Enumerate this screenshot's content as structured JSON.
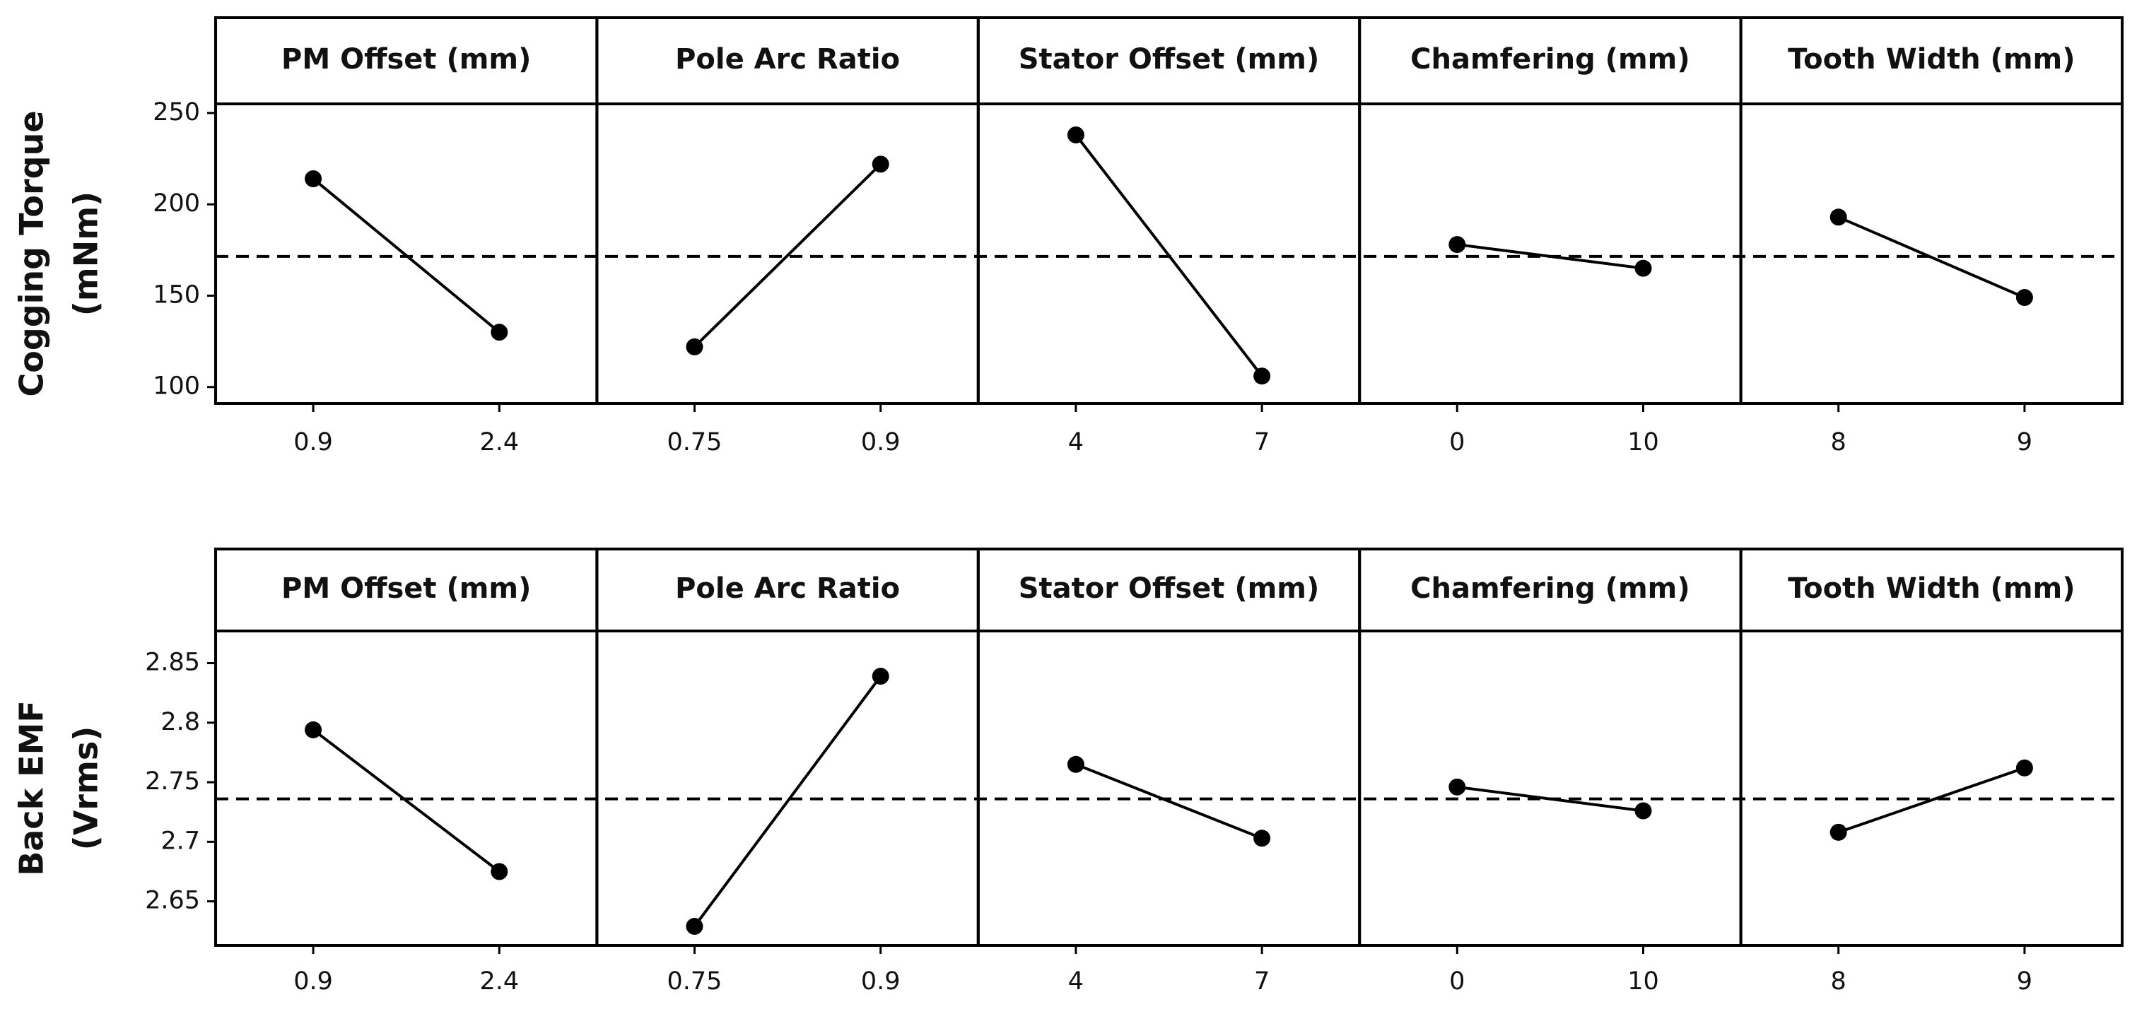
{
  "chart_data": [
    {
      "type": "line",
      "ylabel": [
        "Cogging Torque",
        "(mNm)"
      ],
      "ylim": [
        91,
        255
      ],
      "yticks": [
        100,
        150,
        200,
        250
      ],
      "reference_line": 171.5,
      "color": "#000000",
      "panels": [
        {
          "title": "PM Offset (mm)",
          "categories": [
            "0.9",
            "2.4"
          ],
          "values": [
            214,
            130
          ]
        },
        {
          "title": "Pole Arc Ratio",
          "categories": [
            "0.75",
            "0.9"
          ],
          "values": [
            122,
            222
          ]
        },
        {
          "title": "Stator Offset (mm)",
          "categories": [
            "4",
            "7"
          ],
          "values": [
            238,
            106
          ]
        },
        {
          "title": "Chamfering (mm)",
          "categories": [
            "0",
            "10"
          ],
          "values": [
            178,
            165
          ]
        },
        {
          "title": "Tooth Width (mm)",
          "categories": [
            "8",
            "9"
          ],
          "values": [
            193,
            149
          ]
        }
      ]
    },
    {
      "type": "line",
      "ylabel": [
        "Back EMF",
        "(Vrms)"
      ],
      "ylim": [
        2.613,
        2.877
      ],
      "yticks": [
        2.65,
        2.7,
        2.75,
        2.8,
        2.85
      ],
      "reference_line": 2.736,
      "color": "#000000",
      "panels": [
        {
          "title": "PM Offset (mm)",
          "categories": [
            "0.9",
            "2.4"
          ],
          "values": [
            2.794,
            2.675
          ]
        },
        {
          "title": "Pole Arc Ratio",
          "categories": [
            "0.75",
            "0.9"
          ],
          "values": [
            2.629,
            2.839
          ]
        },
        {
          "title": "Stator Offset (mm)",
          "categories": [
            "4",
            "7"
          ],
          "values": [
            2.765,
            2.703
          ]
        },
        {
          "title": "Chamfering (mm)",
          "categories": [
            "0",
            "10"
          ],
          "values": [
            2.746,
            2.726
          ]
        },
        {
          "title": "Tooth Width (mm)",
          "categories": [
            "8",
            "9"
          ],
          "values": [
            2.708,
            2.762
          ]
        }
      ]
    }
  ]
}
